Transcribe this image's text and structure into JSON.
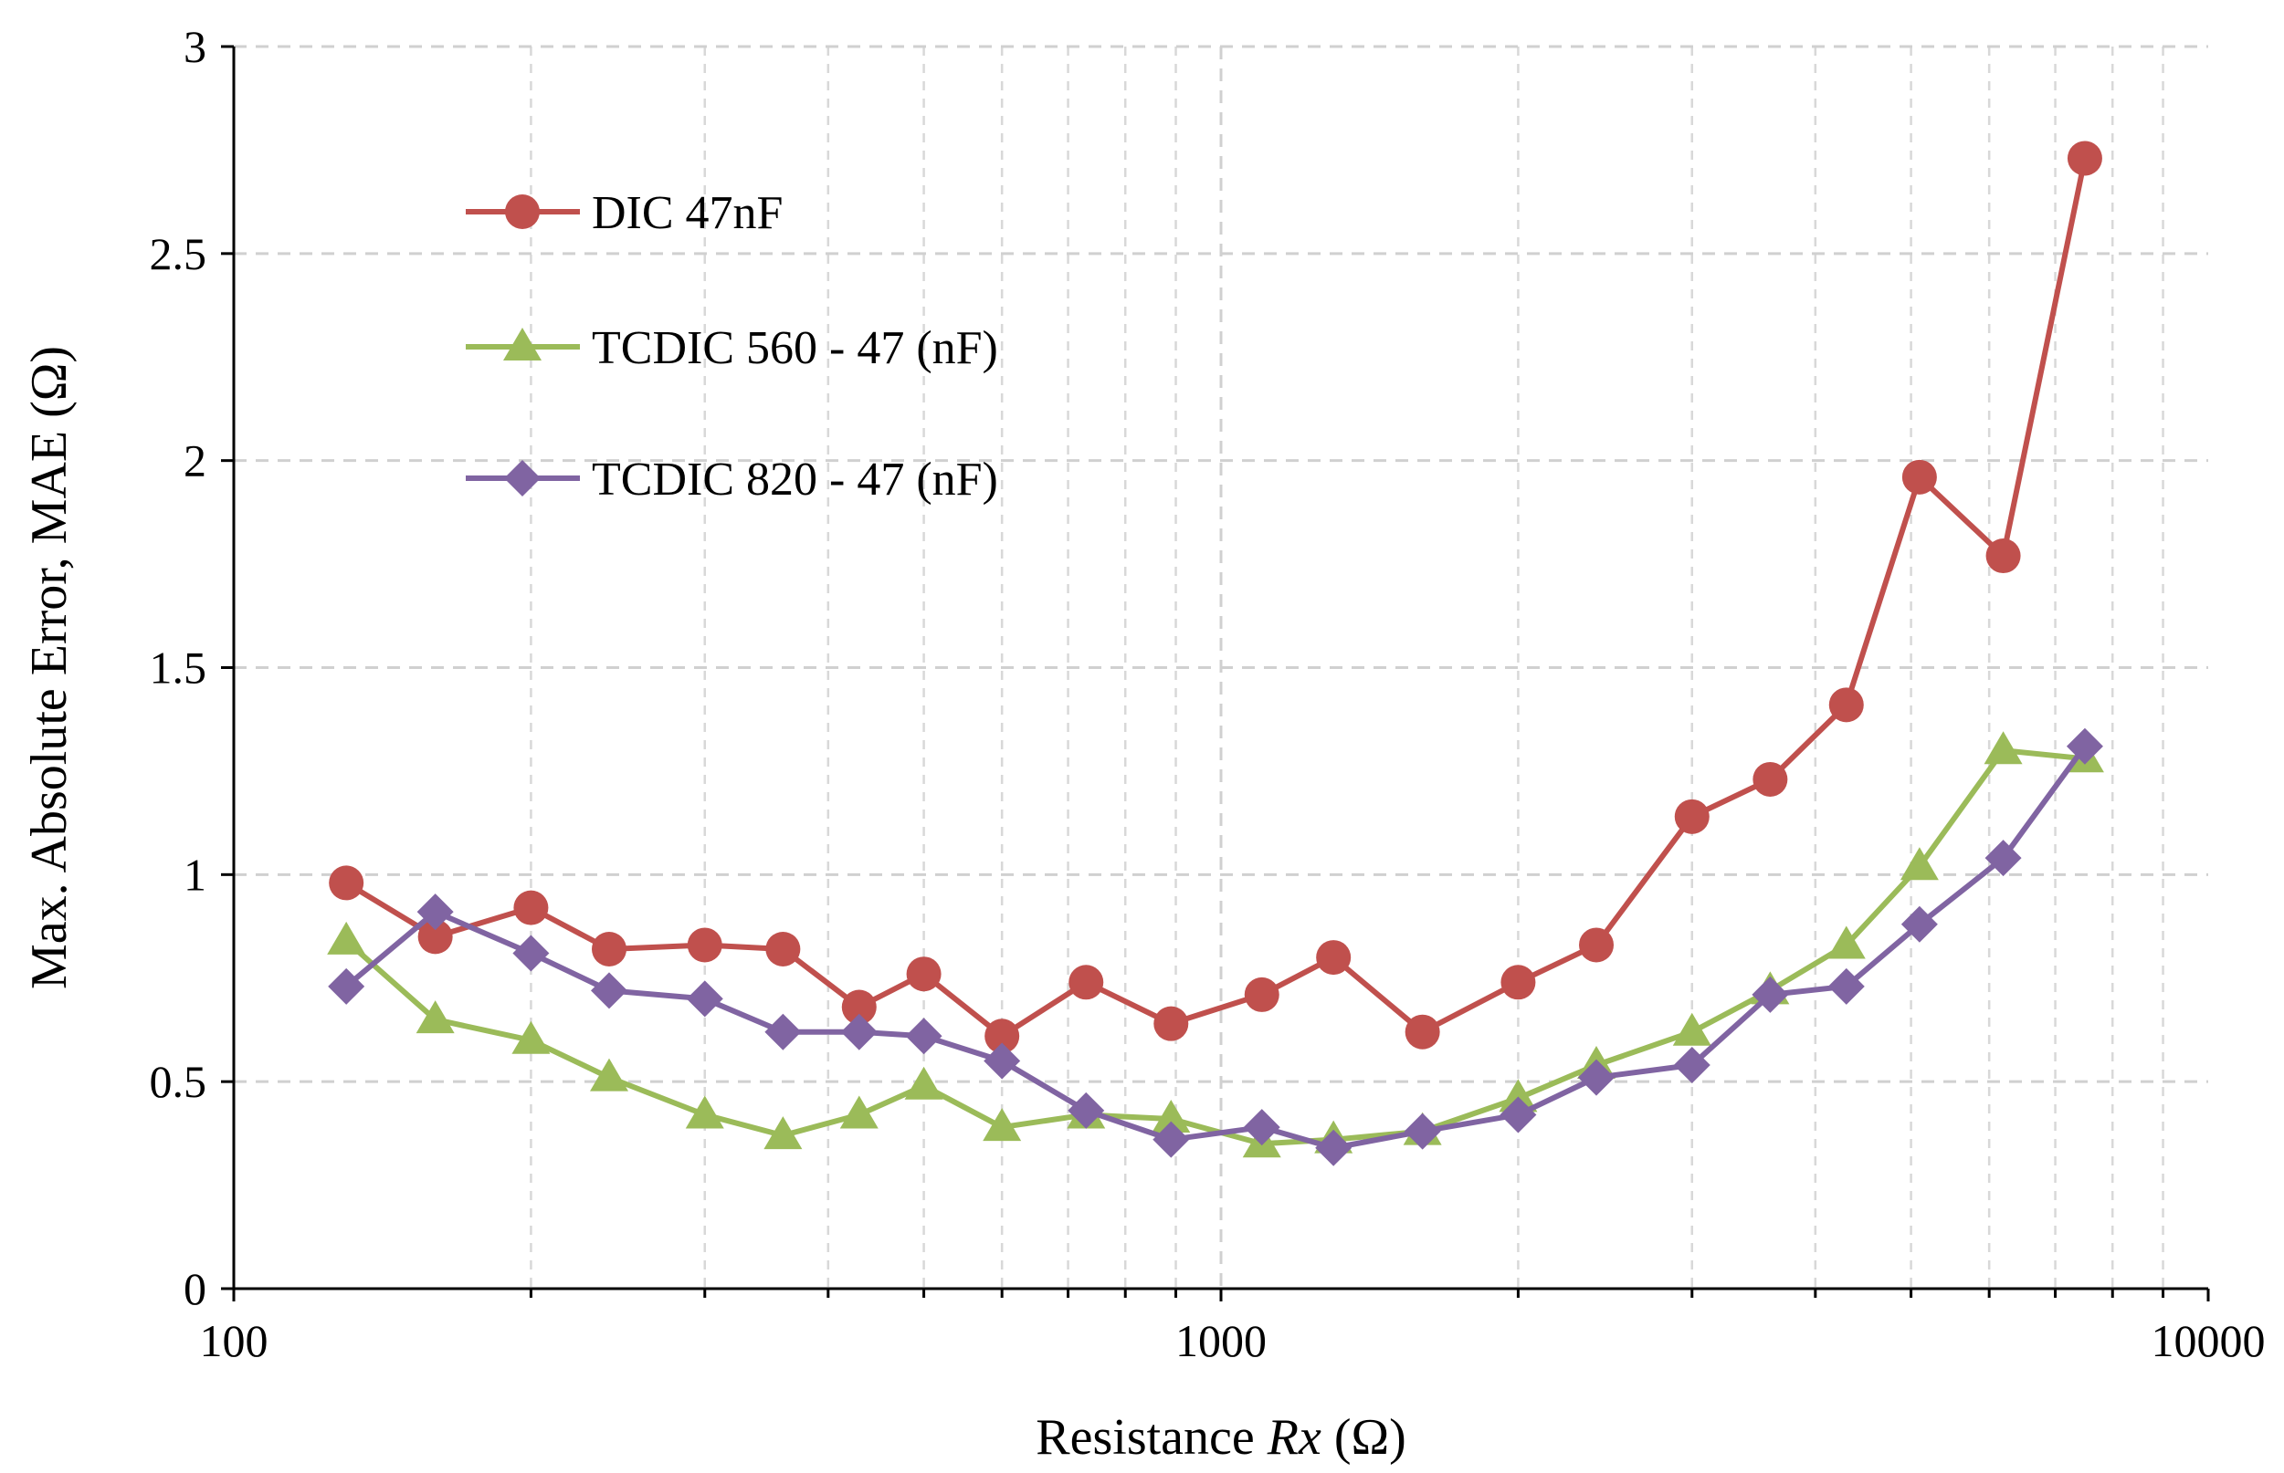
{
  "chart_data": {
    "type": "line",
    "x_scale": "log",
    "xlabel_prefix": "Resistance ",
    "xlabel_var": "Rx",
    "xlabel_suffix": " (Ω)",
    "ylabel": "Max. Absolute Error, MAE (Ω)",
    "xlim": [
      100,
      10000
    ],
    "ylim": [
      0,
      3
    ],
    "x_ticks": [
      {
        "value": 100,
        "label": "100"
      },
      {
        "value": 1000,
        "label": "1000"
      },
      {
        "value": 10000,
        "label": "10000"
      }
    ],
    "y_ticks": [
      {
        "value": 0,
        "label": "0"
      },
      {
        "value": 0.5,
        "label": "0.5"
      },
      {
        "value": 1,
        "label": "1"
      },
      {
        "value": 1.5,
        "label": "1.5"
      },
      {
        "value": 2,
        "label": "2"
      },
      {
        "value": 2.5,
        "label": "2.5"
      },
      {
        "value": 3,
        "label": "3"
      }
    ],
    "grid": true,
    "legend_position": "top-left",
    "series": [
      {
        "name": "DIC 47nF",
        "color": "#C0504D",
        "marker": "circle",
        "x": [
          130,
          160,
          200,
          240,
          300,
          360,
          430,
          500,
          600,
          730,
          890,
          1100,
          1300,
          1600,
          2000,
          2400,
          3000,
          3600,
          4300,
          5100,
          6200,
          7500
        ],
        "y": [
          0.98,
          0.85,
          0.92,
          0.82,
          0.83,
          0.82,
          0.68,
          0.76,
          0.61,
          0.74,
          0.64,
          0.71,
          0.8,
          0.62,
          0.74,
          0.83,
          1.14,
          1.23,
          1.41,
          1.96,
          1.77,
          2.73
        ]
      },
      {
        "name": "TCDIC 560 - 47 (nF)",
        "color": "#9BBB59",
        "marker": "triangle",
        "x": [
          130,
          160,
          200,
          240,
          300,
          360,
          430,
          500,
          600,
          730,
          890,
          1100,
          1300,
          1600,
          2000,
          2400,
          3000,
          3600,
          4300,
          5100,
          6200,
          7500
        ],
        "y": [
          0.84,
          0.65,
          0.6,
          0.51,
          0.42,
          0.37,
          0.42,
          0.49,
          0.39,
          0.42,
          0.41,
          0.35,
          0.36,
          0.38,
          0.46,
          0.54,
          0.62,
          0.72,
          0.83,
          1.02,
          1.3,
          1.28
        ]
      },
      {
        "name": "TCDIC 820 - 47 (nF)",
        "color": "#8064A2",
        "marker": "diamond",
        "x": [
          130,
          160,
          200,
          240,
          300,
          360,
          430,
          500,
          600,
          730,
          890,
          1100,
          1300,
          1600,
          2000,
          2400,
          3000,
          3600,
          4300,
          5100,
          6200,
          7500
        ],
        "y": [
          0.73,
          0.91,
          0.81,
          0.72,
          0.7,
          0.62,
          0.62,
          0.61,
          0.55,
          0.43,
          0.36,
          0.39,
          0.34,
          0.38,
          0.42,
          0.51,
          0.54,
          0.71,
          0.73,
          0.88,
          1.04,
          1.31
        ]
      }
    ]
  }
}
